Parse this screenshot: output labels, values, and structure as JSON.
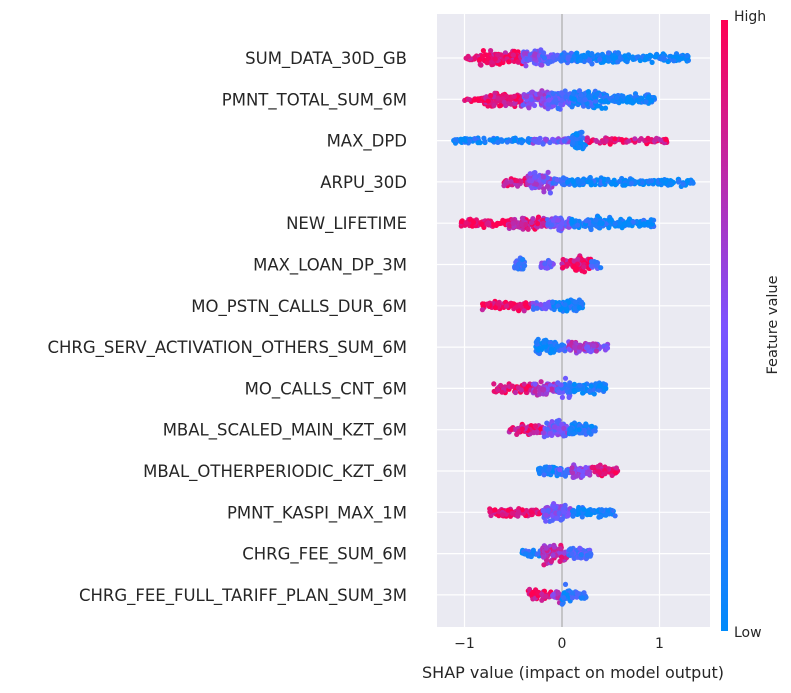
{
  "chart_data": {
    "type": "scatter",
    "subtype": "shap-beeswarm",
    "title": "",
    "xlabel": "SHAP value (impact on model output)",
    "ylabel": "",
    "xlim": [
      -1.25,
      1.45
    ],
    "xticks": [
      -1,
      0,
      1
    ],
    "xtick_labels": [
      "−1",
      "0",
      "1"
    ],
    "grid": true,
    "zero_line": true,
    "colorbar": {
      "label": "Feature value",
      "high_label": "High",
      "low_label": "Low",
      "high_color": "#ff0052",
      "low_color": "#008bfb"
    },
    "features": [
      {
        "name": "SUM_DATA_30D_GB",
        "min": -1.0,
        "max": 1.3,
        "segments": [
          [
            -1.0,
            -0.85,
            0.1,
            0.95
          ],
          [
            -0.85,
            -0.4,
            0.7,
            0.9
          ],
          [
            -0.4,
            -0.2,
            0.8,
            0.5
          ],
          [
            -0.2,
            0.0,
            0.35,
            0.35
          ],
          [
            0.0,
            0.15,
            0.65,
            0.2
          ],
          [
            0.15,
            0.6,
            0.45,
            0.08
          ],
          [
            0.6,
            1.3,
            0.25,
            0.03
          ]
        ]
      },
      {
        "name": "PMNT_TOTAL_SUM_6M",
        "min": -1.0,
        "max": 0.95,
        "segments": [
          [
            -1.0,
            -0.8,
            0.15,
            0.95
          ],
          [
            -0.8,
            -0.4,
            0.65,
            0.9
          ],
          [
            -0.4,
            -0.15,
            0.9,
            0.55
          ],
          [
            -0.15,
            0.1,
            0.85,
            0.35
          ],
          [
            0.1,
            0.45,
            0.8,
            0.12
          ],
          [
            0.45,
            0.95,
            0.4,
            0.05
          ]
        ]
      },
      {
        "name": "MAX_DPD",
        "min": -1.12,
        "max": 1.1,
        "segments": [
          [
            -1.12,
            -0.3,
            0.15,
            0.05
          ],
          [
            -0.3,
            0.1,
            0.2,
            0.45
          ],
          [
            0.1,
            0.25,
            0.9,
            0.1
          ],
          [
            0.25,
            1.1,
            0.12,
            0.9
          ]
        ]
      },
      {
        "name": "ARPU_30D",
        "min": -0.6,
        "max": 1.35,
        "segments": [
          [
            -0.6,
            -0.35,
            0.25,
            0.85
          ],
          [
            -0.35,
            -0.1,
            1.0,
            0.55
          ],
          [
            -0.1,
            0.05,
            0.3,
            0.3
          ],
          [
            0.05,
            0.5,
            0.3,
            0.06
          ],
          [
            0.5,
            1.35,
            0.22,
            0.03
          ]
        ]
      },
      {
        "name": "NEW_LIFETIME",
        "min": -1.05,
        "max": 0.95,
        "segments": [
          [
            -1.05,
            -0.55,
            0.25,
            0.95
          ],
          [
            -0.55,
            -0.15,
            0.5,
            0.85
          ],
          [
            -0.15,
            0.1,
            0.75,
            0.45
          ],
          [
            0.1,
            0.5,
            0.55,
            0.1
          ],
          [
            0.5,
            0.95,
            0.3,
            0.05
          ]
        ]
      },
      {
        "name": "MAX_LOAN_DP_3M",
        "min": -0.5,
        "max": 0.4,
        "segments": [
          [
            -0.5,
            -0.38,
            0.6,
            0.2
          ],
          [
            -0.22,
            -0.08,
            0.45,
            0.45
          ],
          [
            0.0,
            0.12,
            0.55,
            0.85
          ],
          [
            0.12,
            0.3,
            0.75,
            0.95
          ],
          [
            0.3,
            0.4,
            0.25,
            0.25
          ]
        ]
      },
      {
        "name": "MO_PSTN_CALLS_DUR_6M",
        "min": -0.82,
        "max": 0.22,
        "segments": [
          [
            -0.82,
            -0.3,
            0.3,
            0.95
          ],
          [
            -0.3,
            -0.1,
            0.35,
            0.4
          ],
          [
            -0.1,
            0.22,
            0.55,
            0.05
          ]
        ]
      },
      {
        "name": "CHRG_SERV_ACTIVATION_OTHERS_SUM_6M",
        "min": -0.27,
        "max": 0.47,
        "segments": [
          [
            -0.27,
            -0.05,
            0.85,
            0.05
          ],
          [
            -0.05,
            0.05,
            0.35,
            0.15
          ],
          [
            0.05,
            0.25,
            0.55,
            0.65
          ],
          [
            0.25,
            0.47,
            0.35,
            0.55
          ]
        ]
      },
      {
        "name": "MO_CALLS_CNT_6M",
        "min": -0.7,
        "max": 0.45,
        "segments": [
          [
            -0.7,
            -0.3,
            0.4,
            0.92
          ],
          [
            -0.3,
            -0.05,
            0.6,
            0.65
          ],
          [
            -0.05,
            0.1,
            0.8,
            0.3
          ],
          [
            0.1,
            0.45,
            0.45,
            0.05
          ]
        ]
      },
      {
        "name": "MBAL_SCALED_MAIN_KZT_6M",
        "min": -0.55,
        "max": 0.35,
        "segments": [
          [
            -0.55,
            -0.2,
            0.4,
            0.9
          ],
          [
            -0.2,
            0.05,
            0.8,
            0.45
          ],
          [
            0.05,
            0.35,
            0.55,
            0.1
          ]
        ]
      },
      {
        "name": "MBAL_OTHERPERIODIC_KZT_6M",
        "min": -0.25,
        "max": 0.57,
        "segments": [
          [
            -0.25,
            -0.05,
            0.55,
            0.1
          ],
          [
            -0.05,
            0.1,
            0.35,
            0.3
          ],
          [
            0.1,
            0.3,
            0.7,
            0.6
          ],
          [
            0.3,
            0.57,
            0.45,
            0.9
          ]
        ]
      },
      {
        "name": "PMNT_KASPI_MAX_1M",
        "min": -0.75,
        "max": 0.55,
        "segments": [
          [
            -0.75,
            -0.2,
            0.28,
            0.95
          ],
          [
            -0.2,
            0.1,
            0.85,
            0.45
          ],
          [
            0.1,
            0.55,
            0.35,
            0.05
          ]
        ]
      },
      {
        "name": "CHRG_FEE_SUM_6M",
        "min": -0.42,
        "max": 0.3,
        "segments": [
          [
            -0.42,
            -0.2,
            0.3,
            0.15
          ],
          [
            -0.2,
            0.05,
            0.95,
            0.75
          ],
          [
            0.05,
            0.3,
            0.6,
            0.3
          ]
        ]
      },
      {
        "name": "CHRG_FEE_FULL_TARIFF_PLAN_SUM_3M",
        "min": -0.35,
        "max": 0.25,
        "segments": [
          [
            -0.35,
            -0.1,
            0.4,
            0.9
          ],
          [
            -0.1,
            0.0,
            0.6,
            0.6
          ],
          [
            0.0,
            0.1,
            0.85,
            0.1
          ],
          [
            0.1,
            0.25,
            0.3,
            0.2
          ]
        ]
      }
    ]
  }
}
